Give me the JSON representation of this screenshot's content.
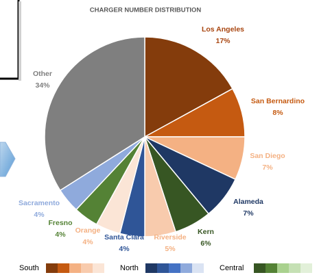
{
  "chart_data": {
    "type": "pie",
    "title": "CHARGER NUMBER DISTRIBUTION",
    "categories": [
      "Los Angeles",
      "San Bernardino",
      "San Diego",
      "Alameda",
      "Kern",
      "Riverside",
      "Santa Clara",
      "Orange",
      "Fresno",
      "Sacramento",
      "Other"
    ],
    "values": [
      17,
      8,
      7,
      7,
      6,
      5,
      4,
      4,
      4,
      4,
      34
    ],
    "value_labels": [
      "17%",
      "8%",
      "7%",
      "7%",
      "6%",
      "5%",
      "4%",
      "4%",
      "4%",
      "4%",
      "34%"
    ],
    "colors": [
      "#843c0c",
      "#c55a11",
      "#f4b183",
      "#1f3864",
      "#375623",
      "#f8cbad",
      "#2f5597",
      "#fbe5d6",
      "#548235",
      "#8faadc",
      "#7f7f7f"
    ],
    "label_colors": [
      "#a8450f",
      "#c55a11",
      "#f4b183",
      "#1f3864",
      "#375623",
      "#f4b183",
      "#2f5597",
      "#f4b183",
      "#548235",
      "#8faadc",
      "#7f7f7f"
    ],
    "legend": [
      {
        "name": "South",
        "colors": [
          "#843c0c",
          "#c55a11",
          "#f4b183",
          "#f8cbad",
          "#fbe5d6"
        ]
      },
      {
        "name": "North",
        "colors": [
          "#1f3864",
          "#2f5597",
          "#4472c4",
          "#8faadc",
          "#dae3f3"
        ]
      },
      {
        "name": "Central",
        "colors": [
          "#375623",
          "#548235",
          "#a9d18e",
          "#c5e0b4",
          "#e2f0d9"
        ]
      }
    ]
  }
}
